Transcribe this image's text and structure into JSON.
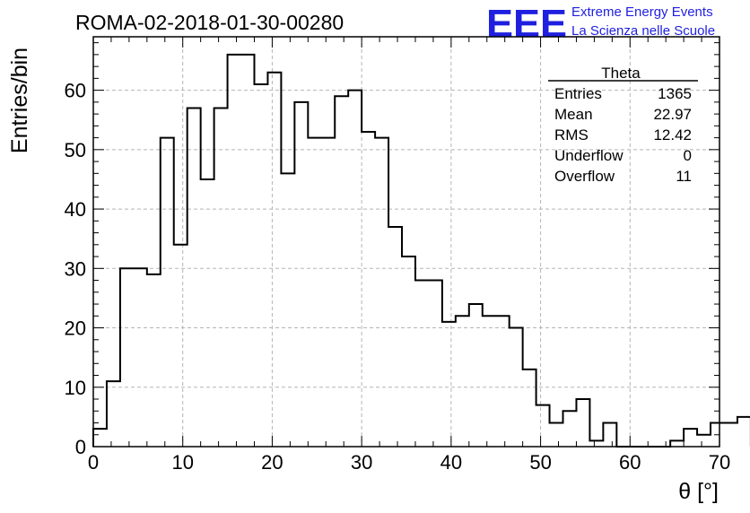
{
  "header": {
    "title": "ROMA-02-2018-01-30-00280",
    "logo_text": "EEE",
    "logo_line1": "Extreme Energy Events",
    "logo_line2": "La Scienza nelle Scuole",
    "logo_color": "#1f1fe0"
  },
  "stats": {
    "name": "Theta",
    "rows": [
      {
        "label": "Entries",
        "value": "1365"
      },
      {
        "label": "Mean",
        "value": "22.97"
      },
      {
        "label": "RMS",
        "value": "12.42"
      },
      {
        "label": "Underflow",
        "value": "0"
      },
      {
        "label": "Overflow",
        "value": "11"
      }
    ]
  },
  "chart_data": {
    "type": "bar",
    "style": "step-histogram",
    "xlabel": "θ [°]",
    "ylabel": "Entries/bin",
    "xlim": [
      0,
      70
    ],
    "ylim": [
      0,
      69
    ],
    "grid": true,
    "bin_width": 1.5,
    "x_ticks": [
      0,
      10,
      20,
      30,
      40,
      50,
      60,
      70
    ],
    "y_ticks": [
      0,
      10,
      20,
      30,
      40,
      50,
      60
    ],
    "values": [
      3,
      11,
      30,
      30,
      29,
      52,
      34,
      57,
      45,
      57,
      66,
      66,
      61,
      63,
      46,
      58,
      52,
      52,
      59,
      60,
      53,
      52,
      37,
      32,
      28,
      28,
      21,
      22,
      24,
      22,
      22,
      20,
      13,
      7,
      4,
      6,
      8,
      1,
      4,
      0,
      0,
      0,
      0,
      1,
      3,
      2,
      4,
      4,
      5
    ],
    "line_color": "#000000"
  }
}
